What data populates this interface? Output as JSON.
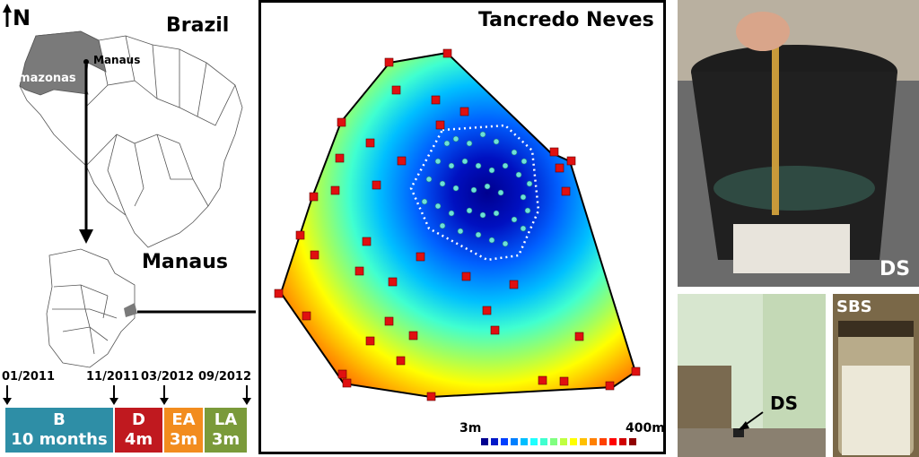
{
  "north_label": "N",
  "brazil_title": "Brazil",
  "amazonas_label": "Amazonas",
  "manaus_city_label": "Manaus",
  "manaus_title": "Manaus",
  "dates": [
    "01/2011",
    "11/2011",
    "03/2012",
    "09/2012"
  ],
  "phases": [
    {
      "code": "B",
      "duration": "10 months",
      "color": "#2e8ea6"
    },
    {
      "code": "D",
      "duration": "4m",
      "color": "#c0191f"
    },
    {
      "code": "EA",
      "duration": "3m",
      "color": "#f28c1e"
    },
    {
      "code": "LA",
      "duration": "3m",
      "color": "#7a9a3a"
    }
  ],
  "map_title": "Tancredo Neves",
  "legend": {
    "min": "3m",
    "max": "400m"
  },
  "photos": {
    "top_label": "DS",
    "bottom_left_label": "DS",
    "bottom_right_label": "SBS"
  }
}
